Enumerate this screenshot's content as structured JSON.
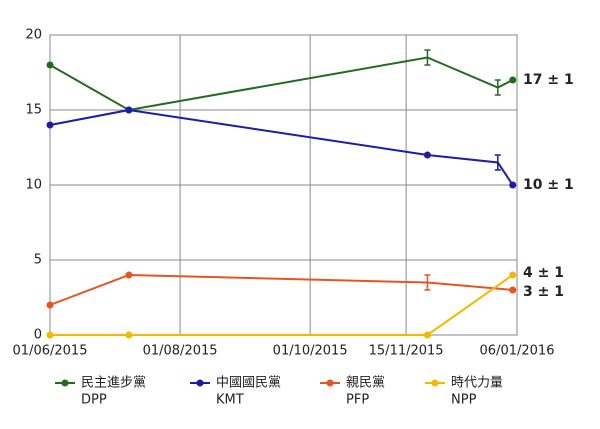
{
  "chart_data": {
    "type": "line",
    "xlim": [
      "2015-06-01",
      "2016-01-06"
    ],
    "xticks": [
      {
        "value": "2015-06-01",
        "label": "01/06/2015"
      },
      {
        "value": "2015-08-01",
        "label": "01/08/2015"
      },
      {
        "value": "2015-10-01",
        "label": "01/10/2015"
      },
      {
        "value": "2015-11-15",
        "label": "15/11/2015"
      },
      {
        "value": "2016-01-06",
        "label": "06/01/2016"
      }
    ],
    "ylim": [
      0,
      20
    ],
    "yticks": [
      0,
      5,
      10,
      15,
      20
    ],
    "grid": true,
    "series": [
      {
        "name": "民主進步黨",
        "abbr": "DPP",
        "color": "#236b1f",
        "x": [
          "2015-06-01",
          "2015-07-08",
          "2015-11-25",
          "2015-12-28",
          "2016-01-04"
        ],
        "values": [
          18,
          15,
          18.5,
          16.5,
          17
        ],
        "errors": [
          null,
          null,
          0.5,
          0.5,
          null
        ],
        "end_label": "17 ± 1"
      },
      {
        "name": "中國國民黨",
        "abbr": "KMT",
        "color": "#1c1ca8",
        "x": [
          "2015-06-01",
          "2015-07-08",
          "2015-11-25",
          "2015-12-28",
          "2016-01-04"
        ],
        "values": [
          14,
          15,
          12,
          11.5,
          10
        ],
        "errors": [
          null,
          null,
          null,
          0.5,
          null
        ],
        "end_label": "10 ± 1"
      },
      {
        "name": "親民黨",
        "abbr": "PFP",
        "color": "#e8531f",
        "x": [
          "2015-06-01",
          "2015-07-08",
          "2015-11-25",
          "2016-01-04"
        ],
        "values": [
          2,
          4,
          3.5,
          3
        ],
        "errors": [
          null,
          null,
          0.5,
          null
        ],
        "end_label": "3 ± 1"
      },
      {
        "name": "時代力量",
        "abbr": "NPP",
        "color": "#f5b800",
        "x": [
          "2015-06-01",
          "2015-07-08",
          "2015-11-25",
          "2016-01-04"
        ],
        "values": [
          0,
          0,
          0,
          4
        ],
        "errors": [
          null,
          null,
          null,
          null
        ],
        "end_label": "4 ± 1"
      }
    ]
  }
}
